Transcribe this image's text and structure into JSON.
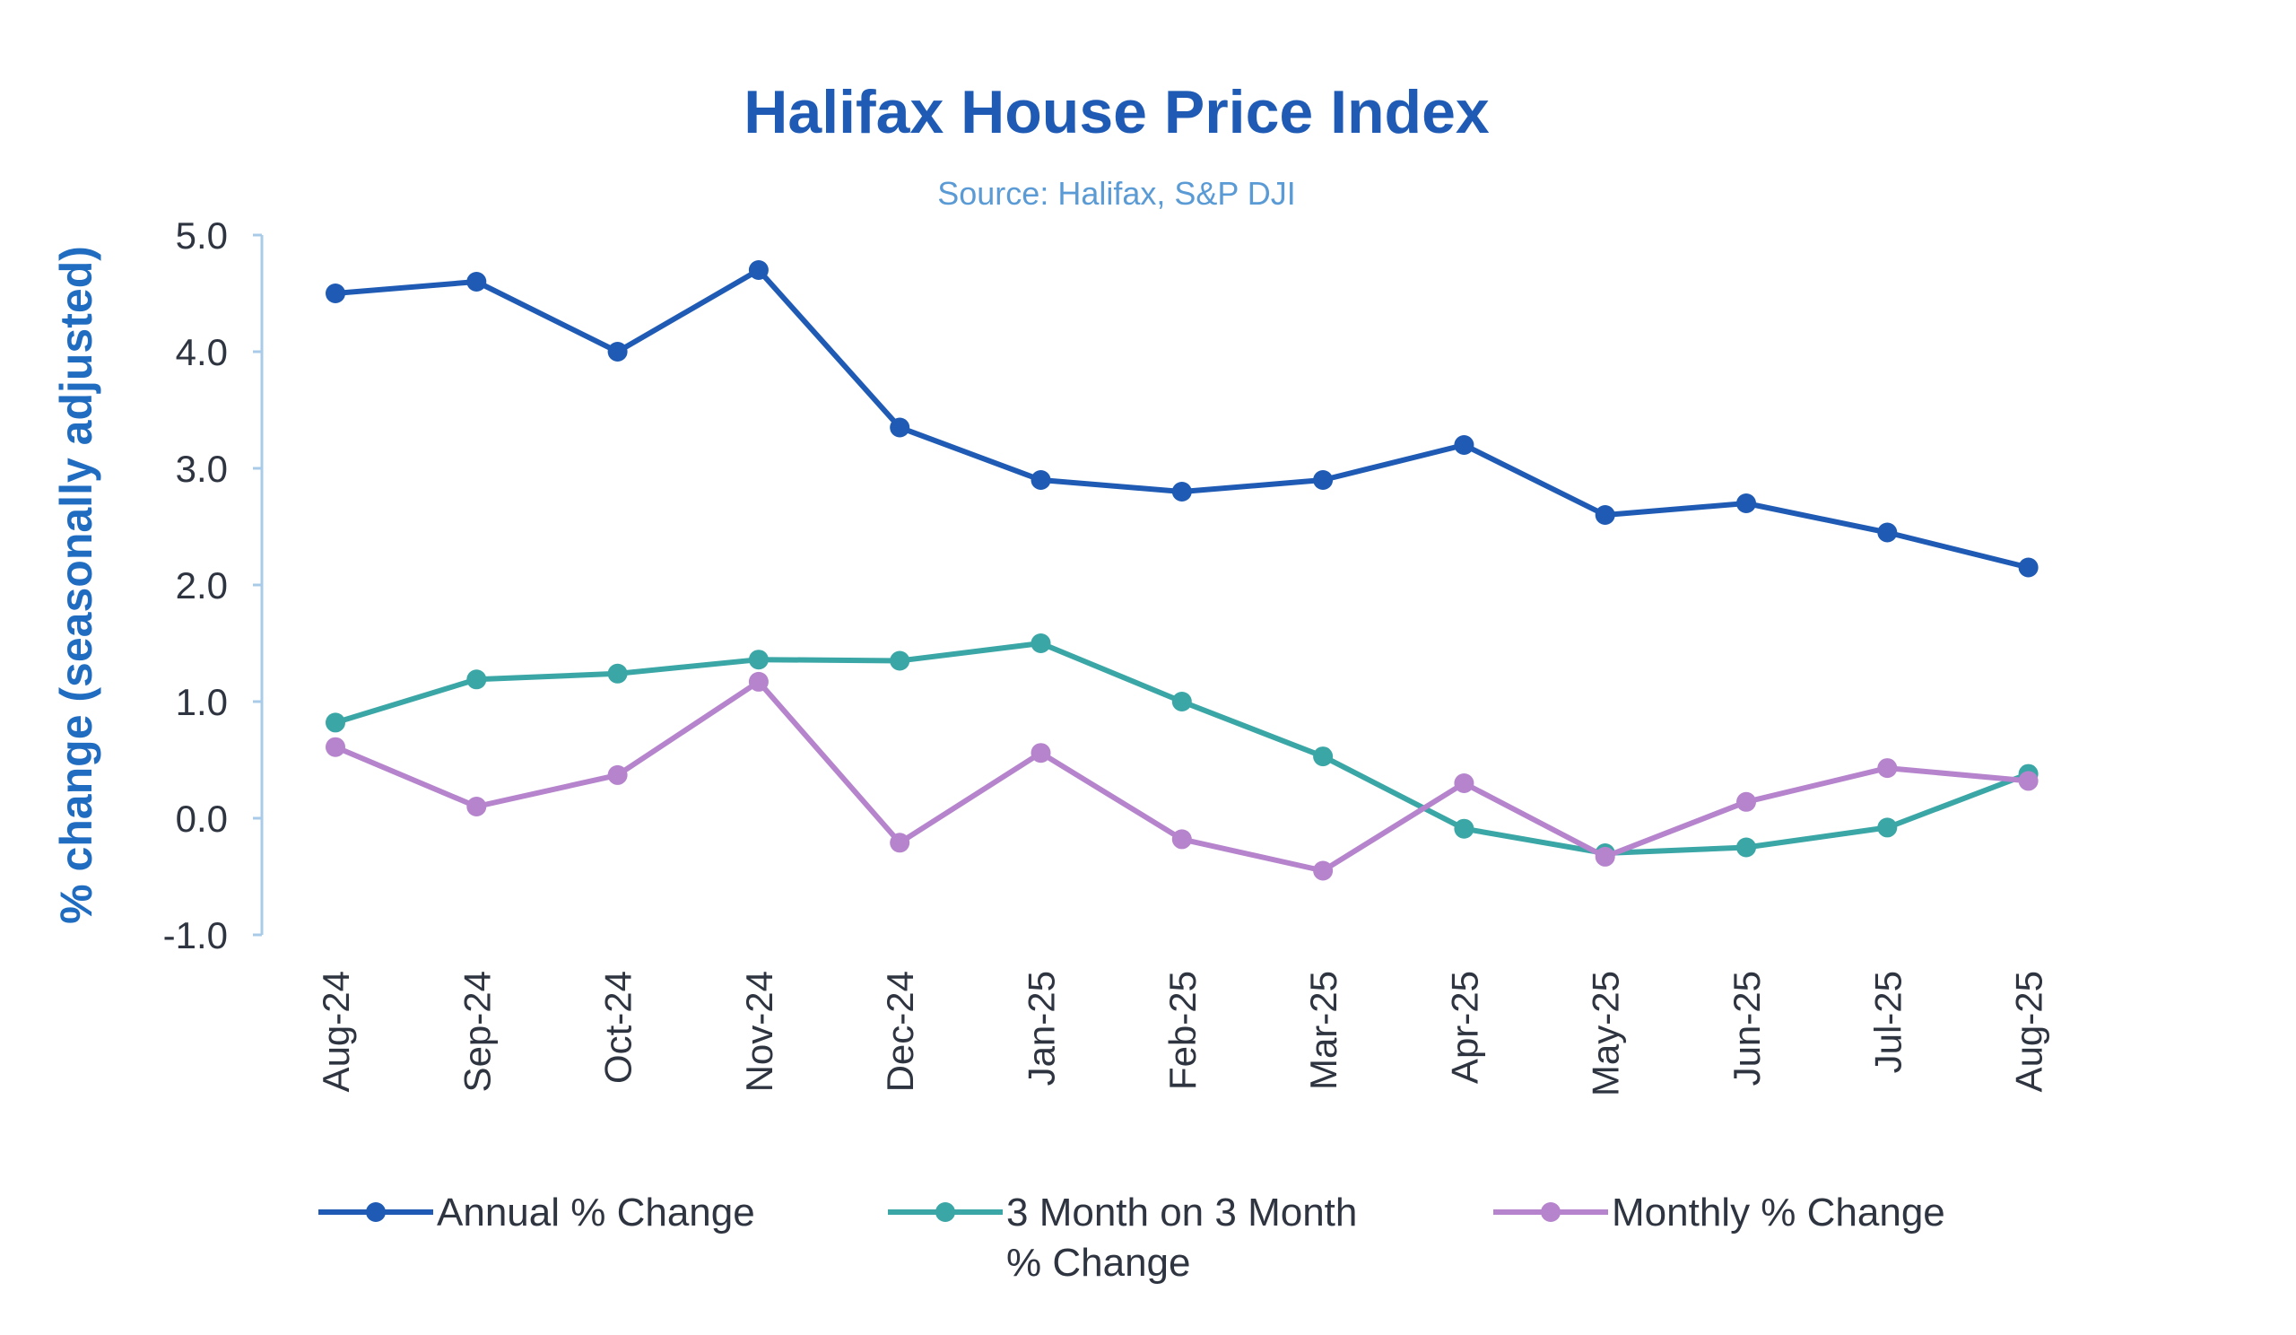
{
  "chart_data": {
    "type": "line",
    "title": "Halifax House Price Index",
    "subtitle": "Source: Halifax, S&P DJI",
    "xlabel": "",
    "ylabel": "% change (seasonally adjusted)",
    "ylim": [
      -1.0,
      5.0
    ],
    "yticks": [
      "5.0",
      "4.0",
      "3.0",
      "2.0",
      "1.0",
      "0.0",
      "-1.0"
    ],
    "grid": false,
    "legend": "bottom",
    "categories": [
      "Aug-24",
      "Sep-24",
      "Oct-24",
      "Nov-24",
      "Dec-24",
      "Jan-25",
      "Feb-25",
      "Mar-25",
      "Apr-25",
      "May-25",
      "Jun-25",
      "Jul-25",
      "Aug-25"
    ],
    "series": [
      {
        "name": "Annual % Change",
        "color": "#1f5bb5",
        "values": [
          4.5,
          4.6,
          4.0,
          4.7,
          3.35,
          2.9,
          2.8,
          2.9,
          3.2,
          2.6,
          2.7,
          2.45,
          2.15
        ]
      },
      {
        "name": "3 Month on 3 Month % Change",
        "name_lines": [
          "3 Month on 3 Month",
          "% Change"
        ],
        "color": "#3aa6a6",
        "values": [
          0.82,
          1.19,
          1.24,
          1.36,
          1.35,
          1.5,
          1.0,
          0.53,
          -0.09,
          -0.3,
          -0.25,
          -0.08,
          0.38
        ]
      },
      {
        "name": "Monthly % Change",
        "color": "#b584cc",
        "values": [
          0.61,
          0.1,
          0.37,
          1.17,
          -0.21,
          0.56,
          -0.18,
          -0.45,
          0.3,
          -0.33,
          0.14,
          0.43,
          0.32
        ]
      }
    ]
  }
}
